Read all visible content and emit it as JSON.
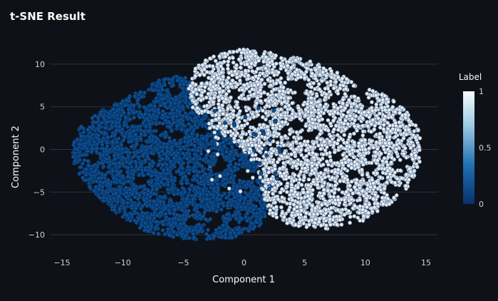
{
  "chart_data": {
    "type": "scatter",
    "title": "t-SNE Result",
    "xlabel": "Component 1",
    "ylabel": "Component 2",
    "xlim": [
      -16,
      16
    ],
    "ylim": [
      -11.5,
      12.5
    ],
    "xticks": [
      -15,
      -10,
      -5,
      0,
      5,
      10,
      15
    ],
    "yticks": [
      10,
      5,
      0,
      -5,
      -10
    ],
    "grid": "horizontal",
    "colorbar": {
      "title": "Label",
      "ticks": [
        1,
        0.5,
        0
      ],
      "low_color": "#08306b",
      "high_color": "#f7fbff"
    },
    "clusters": [
      {
        "label": 0,
        "approx_points": 5000,
        "polygon": [
          [
            -14.2,
            0.2
          ],
          [
            -13.6,
            2.5
          ],
          [
            -12.0,
            4.4
          ],
          [
            -9.5,
            6.2
          ],
          [
            -7.0,
            8.1
          ],
          [
            -5.0,
            8.8
          ],
          [
            -4.0,
            7.2
          ],
          [
            -3.3,
            4.2
          ],
          [
            -1.5,
            1.8
          ],
          [
            0.5,
            -0.2
          ],
          [
            1.3,
            -2.5
          ],
          [
            1.9,
            -4.5
          ],
          [
            1.9,
            -7.0
          ],
          [
            1.5,
            -9.0
          ],
          [
            -1.0,
            -10.4
          ],
          [
            -4.5,
            -10.6
          ],
          [
            -8.0,
            -9.7
          ],
          [
            -10.8,
            -7.2
          ],
          [
            -12.8,
            -4.5
          ],
          [
            -14.0,
            -2.0
          ]
        ]
      },
      {
        "label": 1,
        "approx_points": 5000,
        "polygon": [
          [
            -4.6,
            7.0
          ],
          [
            -4.0,
            10.0
          ],
          [
            -2.0,
            11.2
          ],
          [
            0.0,
            11.8
          ],
          [
            2.0,
            11.4
          ],
          [
            5.0,
            10.6
          ],
          [
            7.5,
            9.2
          ],
          [
            9.3,
            7.6
          ],
          [
            8.7,
            6.6
          ],
          [
            9.5,
            7.4
          ],
          [
            11.5,
            6.5
          ],
          [
            13.3,
            4.8
          ],
          [
            14.5,
            2.0
          ],
          [
            14.6,
            -1.0
          ],
          [
            13.8,
            -4.0
          ],
          [
            12.0,
            -6.5
          ],
          [
            10.0,
            -8.3
          ],
          [
            7.0,
            -9.3
          ],
          [
            4.0,
            -9.0
          ],
          [
            2.0,
            -7.5
          ],
          [
            1.5,
            -5.0
          ],
          [
            1.0,
            -2.0
          ],
          [
            0.0,
            0.0
          ],
          [
            -2.0,
            2.0
          ],
          [
            -4.2,
            4.5
          ]
        ]
      }
    ]
  }
}
